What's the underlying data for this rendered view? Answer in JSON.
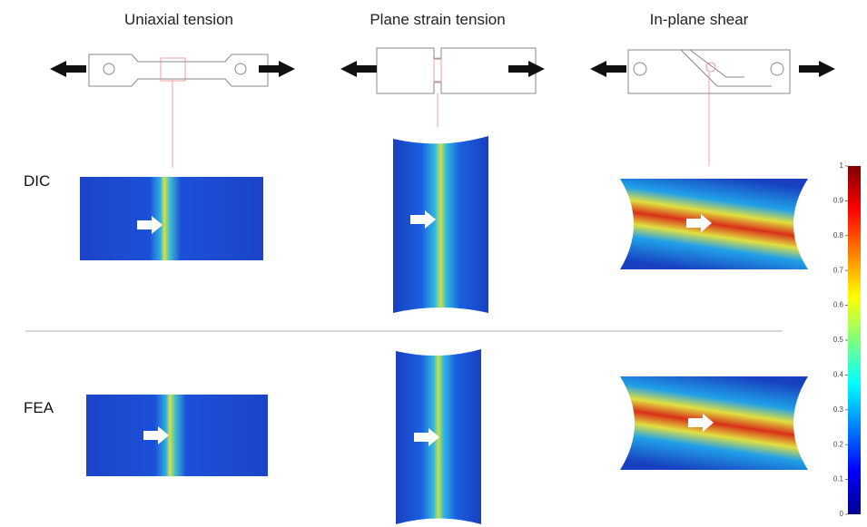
{
  "columns": [
    "Uniaxial tension",
    "Plane strain tension",
    "In-plane shear"
  ],
  "rows": [
    "DIC",
    "FEA"
  ],
  "colorbar": {
    "range": [
      0,
      1
    ],
    "ticks": [
      0,
      0.1,
      0.2,
      0.3,
      0.4,
      0.5,
      0.6,
      0.7,
      0.8,
      0.9,
      1
    ]
  }
}
